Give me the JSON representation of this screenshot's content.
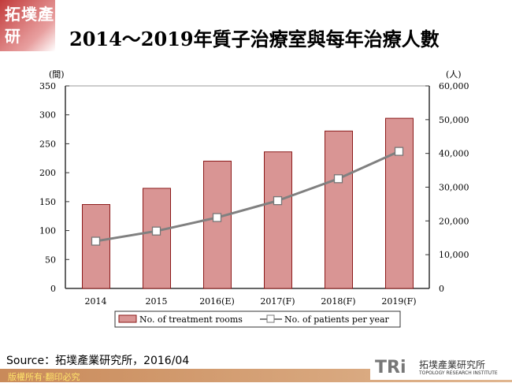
{
  "logo": "拓墣產研",
  "title": "2014～2019年質子治療室與每年治療人數",
  "chart_data": {
    "type": "bar+line",
    "categories": [
      "2014",
      "2015",
      "2016(E)",
      "2017(F)",
      "2018(F)",
      "2019(F)"
    ],
    "series": [
      {
        "name": "No. of treatment rooms",
        "type": "bar",
        "axis": "left",
        "color": "#d99594",
        "values": [
          145,
          173,
          220,
          236,
          272,
          294
        ]
      },
      {
        "name": "No. of patients per year",
        "type": "line",
        "axis": "right",
        "color": "#808080",
        "values": [
          14000,
          17000,
          21000,
          26000,
          32500,
          40600
        ]
      }
    ],
    "ylabel_left": "(間)",
    "ylabel_right": "(人)",
    "ylim_left": [
      0,
      350
    ],
    "ylim_right": [
      0,
      60000
    ],
    "yticks_left": [
      "0",
      "50",
      "100",
      "150",
      "200",
      "250",
      "300",
      "350"
    ],
    "yticks_right": [
      "0",
      "10,000",
      "20,000",
      "30,000",
      "40,000",
      "50,000",
      "60,000"
    ],
    "grid": false,
    "legend": "bottom"
  },
  "source": "Source：拓墣產業研究所，2016/04",
  "footer": {
    "copyright": "版權所有‧翻印必究",
    "brand_mark": "TRi",
    "brand_cn": "拓墣產業研究所",
    "brand_en": "TOPOLOGY RESEARCH INSTITUTE"
  }
}
